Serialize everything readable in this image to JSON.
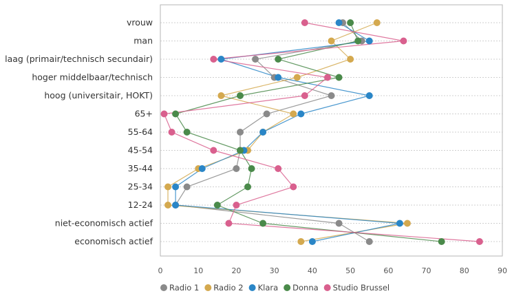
{
  "chart_data": {
    "type": "line",
    "orientation": "horizontal-categories",
    "categories": [
      "vrouw",
      "man",
      "laag (primair/technisch secundair)",
      "hoger middelbaar/technisch",
      "hoog (universitair, HOKT)",
      "65+",
      "55-64",
      "45-54",
      "35-44",
      "25-34",
      "12-24",
      "niet-economisch actief",
      "economisch actief"
    ],
    "xlim": [
      0,
      90
    ],
    "xticks": [
      0,
      10,
      20,
      30,
      40,
      50,
      60,
      70,
      80,
      90
    ],
    "grid": true,
    "legend_position": "bottom",
    "series": [
      {
        "name": "Radio 1",
        "color": "#8a8a8a",
        "values": [
          48,
          53,
          25,
          30,
          45,
          28,
          21,
          21,
          20,
          7,
          4,
          47,
          55
        ]
      },
      {
        "name": "Radio 2",
        "color": "#d4a94f",
        "values": [
          57,
          45,
          50,
          36,
          16,
          35,
          27,
          23,
          10,
          2,
          2,
          65,
          37
        ]
      },
      {
        "name": "Klara",
        "color": "#2a86c7",
        "values": [
          47,
          55,
          16,
          31,
          55,
          37,
          27,
          22,
          11,
          4,
          4,
          63,
          40
        ]
      },
      {
        "name": "Donna",
        "color": "#4a8a4a",
        "values": [
          50,
          52,
          31,
          47,
          21,
          4,
          7,
          21,
          24,
          23,
          15,
          27,
          74
        ]
      },
      {
        "name": "Studio Brussel",
        "color": "#d9608e",
        "values": [
          38,
          64,
          14,
          44,
          38,
          1,
          3,
          14,
          31,
          35,
          20,
          18,
          84
        ]
      }
    ]
  }
}
